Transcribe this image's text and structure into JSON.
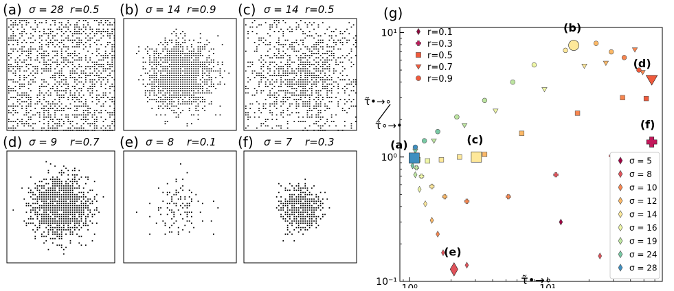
{
  "panels": [
    {
      "label": "(a)",
      "sigma_text": "σ = 28",
      "r_text": "r=0.5",
      "sigma": 28,
      "r": 0.5
    },
    {
      "label": "(b)",
      "sigma_text": "σ = 14",
      "r_text": "r=0.9",
      "sigma": 14,
      "r": 0.9
    },
    {
      "label": "(c)",
      "sigma_text": "σ = 14",
      "r_text": "r=0.5",
      "sigma": 14,
      "r": 0.5
    },
    {
      "label": "(d)",
      "sigma_text": "σ = 9",
      "r_text": "r=0.7",
      "sigma": 9,
      "r": 0.7
    },
    {
      "label": "(e)",
      "sigma_text": "σ = 8",
      "r_text": "r=0.1",
      "sigma": 8,
      "r": 0.1
    },
    {
      "label": "(f)",
      "sigma_text": "σ = 7",
      "r_text": "r=0.3",
      "sigma": 7,
      "r": 0.3
    }
  ],
  "chart_data": {
    "type": "scatter",
    "panel_label": "(g)",
    "xscale": "log",
    "yscale": "log",
    "xlim": [
      0.85,
      68
    ],
    "ylim": [
      0.1,
      11
    ],
    "xticks": [
      {
        "v": 1,
        "label": "10⁰"
      },
      {
        "v": 10,
        "label": "10¹"
      }
    ],
    "yticks": [
      {
        "v": 0.1,
        "label": "10⁻¹"
      },
      {
        "v": 1,
        "label": "10⁰"
      },
      {
        "v": 10,
        "label": "10¹"
      }
    ],
    "xlabel": "τ̃•→∘",
    "ylabel_num": "τ̃•→∘",
    "ylabel_den": "τ̃∘→•",
    "shape_legend": {
      "placement": "top-left",
      "entries": [
        {
          "shape": "diamond",
          "text": "r=0.1",
          "color": "#8b0a3c"
        },
        {
          "shape": "plus",
          "text": "r=0.3",
          "color": "#c2185b"
        },
        {
          "shape": "square",
          "text": "r=0.5",
          "color": "#f05a3c"
        },
        {
          "shape": "triangle",
          "text": "r=0.7",
          "color": "#f05a3c"
        },
        {
          "shape": "circle",
          "text": "r=0.9",
          "color": "#f05a3c"
        }
      ]
    },
    "sigma_legend": {
      "placement": "lower-right",
      "entries": [
        {
          "text": "σ = 5",
          "color": "#9e0142"
        },
        {
          "text": "σ = 8",
          "color": "#e0525a"
        },
        {
          "text": "σ = 10",
          "color": "#f8864f"
        },
        {
          "text": "σ = 12",
          "color": "#fcb866"
        },
        {
          "text": "σ = 14",
          "color": "#fee89a"
        },
        {
          "text": "σ = 16",
          "color": "#eef6a6"
        },
        {
          "text": "σ = 19",
          "color": "#bde5a0"
        },
        {
          "text": "σ = 24",
          "color": "#78c9a4"
        },
        {
          "text": "σ = 28",
          "color": "#3f8fc0"
        }
      ]
    },
    "series": [
      {
        "r": 0.1,
        "shape": "diamond",
        "points": [
          {
            "x": 1.05,
            "y": 0.85,
            "c": "#78c9a4"
          },
          {
            "x": 1.1,
            "y": 0.72,
            "c": "#bde5a0"
          },
          {
            "x": 1.18,
            "y": 0.55,
            "c": "#eef6a6"
          },
          {
            "x": 1.3,
            "y": 0.42,
            "c": "#fee89a"
          },
          {
            "x": 1.45,
            "y": 0.31,
            "c": "#fcb866"
          },
          {
            "x": 1.6,
            "y": 0.24,
            "c": "#f8864f"
          },
          {
            "x": 1.75,
            "y": 0.17,
            "c": "#e0525a"
          },
          {
            "x": 2.6,
            "y": 0.135,
            "c": "#e0525a"
          },
          {
            "x": 12.5,
            "y": 0.3,
            "c": "#9e0142"
          },
          {
            "x": 24,
            "y": 0.16,
            "c": "#e0525a"
          }
        ]
      },
      {
        "r": 0.3,
        "shape": "plus",
        "points": [
          {
            "x": 1.06,
            "y": 0.93,
            "c": "#78c9a4"
          },
          {
            "x": 1.12,
            "y": 0.82,
            "c": "#bde5a0"
          },
          {
            "x": 1.22,
            "y": 0.7,
            "c": "#eef6a6"
          },
          {
            "x": 1.45,
            "y": 0.58,
            "c": "#fee89a"
          },
          {
            "x": 1.8,
            "y": 0.48,
            "c": "#fcb866"
          },
          {
            "x": 2.6,
            "y": 0.44,
            "c": "#f8864f"
          },
          {
            "x": 5.2,
            "y": 0.48,
            "c": "#f8864f"
          },
          {
            "x": 11.5,
            "y": 0.72,
            "c": "#e0525a"
          },
          {
            "x": 29,
            "y": 1.02,
            "c": "#e0525a"
          }
        ]
      },
      {
        "r": 0.5,
        "shape": "square",
        "points": [
          {
            "x": 1.05,
            "y": 1.0,
            "c": "#78c9a4"
          },
          {
            "x": 1.15,
            "y": 0.95,
            "c": "#bde5a0"
          },
          {
            "x": 1.35,
            "y": 0.93,
            "c": "#eef6a6"
          },
          {
            "x": 1.7,
            "y": 0.95,
            "c": "#fee89a"
          },
          {
            "x": 2.3,
            "y": 1.0,
            "c": "#fee89a"
          },
          {
            "x": 3.5,
            "y": 1.05,
            "c": "#fcb866"
          },
          {
            "x": 6.5,
            "y": 1.55,
            "c": "#fcb866"
          },
          {
            "x": 16.5,
            "y": 2.25,
            "c": "#f8864f"
          },
          {
            "x": 35,
            "y": 3.0,
            "c": "#f8864f"
          },
          {
            "x": 52,
            "y": 2.95,
            "c": "#f05a3c"
          }
        ]
      },
      {
        "r": 0.7,
        "shape": "triangle",
        "points": [
          {
            "x": 1.1,
            "y": 1.12,
            "c": "#78c9a4"
          },
          {
            "x": 1.5,
            "y": 1.35,
            "c": "#bde5a0"
          },
          {
            "x": 2.5,
            "y": 1.8,
            "c": "#bde5a0"
          },
          {
            "x": 4.2,
            "y": 2.35,
            "c": "#eef6a6"
          },
          {
            "x": 9.5,
            "y": 3.5,
            "c": "#eef6a6"
          },
          {
            "x": 18.5,
            "y": 5.4,
            "c": "#fee89a"
          },
          {
            "x": 26.5,
            "y": 5.7,
            "c": "#fcb866"
          },
          {
            "x": 43,
            "y": 7.3,
            "c": "#f8864f"
          },
          {
            "x": 49,
            "y": 4.8,
            "c": "#f8864f"
          }
        ]
      },
      {
        "r": 0.9,
        "shape": "circle",
        "points": [
          {
            "x": 1.1,
            "y": 1.2,
            "c": "#3f8fc0"
          },
          {
            "x": 1.28,
            "y": 1.35,
            "c": "#78c9a4"
          },
          {
            "x": 1.6,
            "y": 1.6,
            "c": "#78c9a4"
          },
          {
            "x": 2.2,
            "y": 2.1,
            "c": "#bde5a0"
          },
          {
            "x": 3.5,
            "y": 2.85,
            "c": "#bde5a0"
          },
          {
            "x": 5.6,
            "y": 4.0,
            "c": "#bde5a0"
          },
          {
            "x": 8.0,
            "y": 5.5,
            "c": "#eef6a6"
          },
          {
            "x": 13.5,
            "y": 7.2,
            "c": "#fee89a"
          },
          {
            "x": 22.5,
            "y": 8.2,
            "c": "#fcb866"
          },
          {
            "x": 29,
            "y": 7.0,
            "c": "#fcb866"
          },
          {
            "x": 36,
            "y": 6.3,
            "c": "#f8864f"
          },
          {
            "x": 46,
            "y": 5.0,
            "c": "#f05a3c"
          }
        ]
      }
    ],
    "callouts": [
      {
        "label": "(a)",
        "x": 1.08,
        "y": 0.98,
        "shape": "square",
        "color": "#3f8fc0"
      },
      {
        "label": "(b)",
        "x": 15.5,
        "y": 7.9,
        "shape": "circle",
        "color": "#fee89a"
      },
      {
        "label": "(c)",
        "x": 3.05,
        "y": 1.0,
        "shape": "square",
        "color": "#fee89a"
      },
      {
        "label": "(d)",
        "x": 57,
        "y": 4.2,
        "shape": "triangle",
        "color": "#f05a3c"
      },
      {
        "label": "(e)",
        "x": 2.1,
        "y": 0.125,
        "shape": "diamond",
        "color": "#e0525a"
      },
      {
        "label": "(f)",
        "x": 57,
        "y": 1.32,
        "shape": "plus",
        "color": "#c2185b"
      }
    ]
  }
}
